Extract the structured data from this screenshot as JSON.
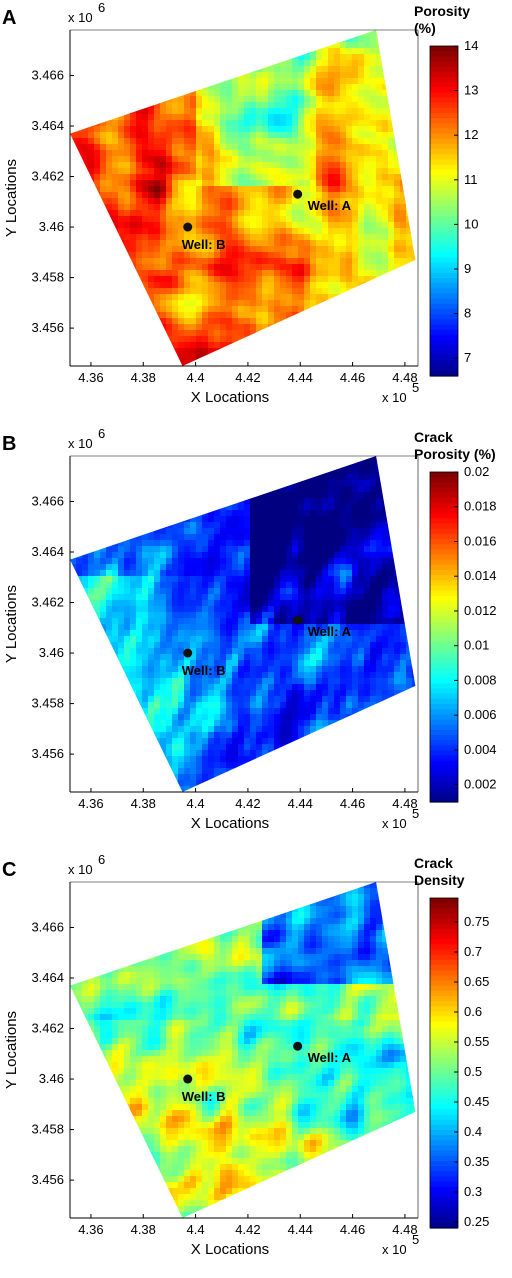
{
  "chart_data": [
    {
      "type": "heatmap",
      "panel_label": "A",
      "xlabel": "X Locations",
      "ylabel": "Y Locations",
      "x_exponent_label": "x 10",
      "x_exponent_power": "5",
      "y_exponent_label": "x 10",
      "y_exponent_power": "6",
      "xticks": [
        "4.36",
        "4.38",
        "4.4",
        "4.42",
        "4.44",
        "4.46",
        "4.48"
      ],
      "xtick_values": [
        4.36,
        4.38,
        4.4,
        4.42,
        4.44,
        4.46,
        4.48
      ],
      "yticks": [
        "3.466",
        "3.464",
        "3.462",
        "3.46",
        "3.458",
        "3.456"
      ],
      "ytick_values": [
        3.466,
        3.464,
        3.462,
        3.46,
        3.458,
        3.456
      ],
      "xlim": [
        4.352,
        4.485
      ],
      "ylim": [
        3.4545,
        3.4678
      ],
      "colorbar": {
        "title_lines": [
          "Porosity",
          "(%)"
        ],
        "min": 6.6,
        "max": 14.0,
        "ticks": [
          "14",
          "13",
          "12",
          "11",
          "10",
          "9",
          "8",
          "7"
        ],
        "tick_values": [
          14,
          13,
          12,
          11,
          10,
          9,
          8,
          7
        ]
      },
      "field_style": "warm-west",
      "wells": [
        {
          "label": "Well: A",
          "x": 4.439,
          "y": 3.4613
        },
        {
          "label": "Well: B",
          "x": 4.397,
          "y": 3.46
        }
      ]
    },
    {
      "type": "heatmap",
      "panel_label": "B",
      "xlabel": "X Locations",
      "ylabel": "Y Locations",
      "x_exponent_label": "x 10",
      "x_exponent_power": "5",
      "y_exponent_label": "x 10",
      "y_exponent_power": "6",
      "xticks": [
        "4.36",
        "4.38",
        "4.4",
        "4.42",
        "4.44",
        "4.46",
        "4.48"
      ],
      "xtick_values": [
        4.36,
        4.38,
        4.4,
        4.42,
        4.44,
        4.46,
        4.48
      ],
      "yticks": [
        "3.466",
        "3.464",
        "3.462",
        "3.46",
        "3.458",
        "3.456"
      ],
      "ytick_values": [
        3.466,
        3.464,
        3.462,
        3.46,
        3.458,
        3.456
      ],
      "xlim": [
        4.352,
        4.485
      ],
      "ylim": [
        3.4545,
        3.4678
      ],
      "colorbar": {
        "title_lines": [
          "Crack",
          "Porosity (%)"
        ],
        "min": 0.001,
        "max": 0.02,
        "ticks": [
          "0.02",
          "0.018",
          "0.016",
          "0.014",
          "0.012",
          "0.01",
          "0.008",
          "0.006",
          "0.004",
          "0.002"
        ],
        "tick_values": [
          0.02,
          0.018,
          0.016,
          0.014,
          0.012,
          0.01,
          0.008,
          0.006,
          0.004,
          0.002
        ]
      },
      "field_style": "cool-with-hotspots",
      "wells": [
        {
          "label": "Well: A",
          "x": 4.439,
          "y": 3.4613
        },
        {
          "label": "Well: B",
          "x": 4.397,
          "y": 3.46
        }
      ]
    },
    {
      "type": "heatmap",
      "panel_label": "C",
      "xlabel": "X Locations",
      "ylabel": "Y Locations",
      "x_exponent_label": "x 10",
      "x_exponent_power": "5",
      "y_exponent_label": "x 10",
      "y_exponent_power": "6",
      "xticks": [
        "4.36",
        "4.38",
        "4.4",
        "4.42",
        "4.44",
        "4.46",
        "4.48"
      ],
      "xtick_values": [
        4.36,
        4.38,
        4.4,
        4.42,
        4.44,
        4.46,
        4.48
      ],
      "yticks": [
        "3.466",
        "3.464",
        "3.462",
        "3.46",
        "3.458",
        "3.456"
      ],
      "ytick_values": [
        3.466,
        3.464,
        3.462,
        3.46,
        3.458,
        3.456
      ],
      "xlim": [
        4.352,
        4.485
      ],
      "ylim": [
        3.4545,
        3.4678
      ],
      "colorbar": {
        "title_lines": [
          "Crack",
          "Density"
        ],
        "min": 0.24,
        "max": 0.79,
        "ticks": [
          "0.75",
          "0.7",
          "0.65",
          "0.6",
          "0.55",
          "0.5",
          "0.45",
          "0.4",
          "0.35",
          "0.3",
          "0.25"
        ],
        "tick_values": [
          0.75,
          0.7,
          0.65,
          0.6,
          0.55,
          0.5,
          0.45,
          0.4,
          0.35,
          0.3,
          0.25
        ]
      },
      "field_style": "mixed",
      "wells": [
        {
          "label": "Well: A",
          "x": 4.439,
          "y": 3.4613
        },
        {
          "label": "Well: B",
          "x": 4.397,
          "y": 3.46
        }
      ]
    }
  ]
}
